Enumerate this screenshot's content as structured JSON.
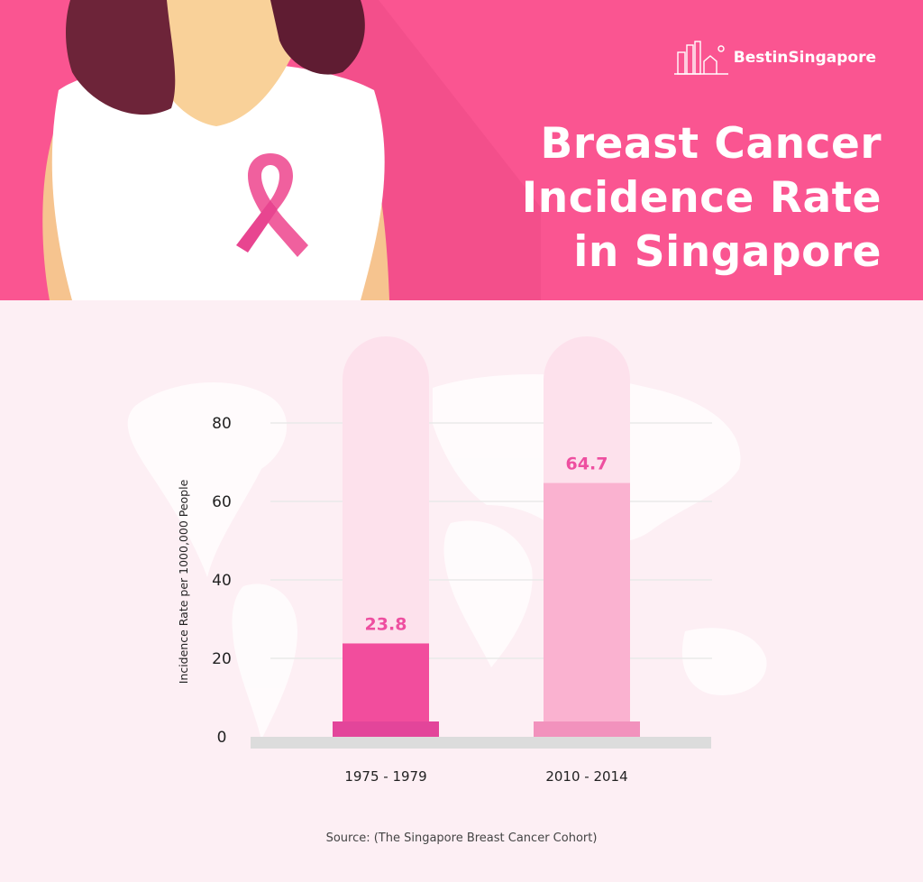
{
  "brand": {
    "name": "BestinSingapore"
  },
  "header": {
    "title_lines": [
      "Breast Cancer",
      "Incidence Rate",
      "in Singapore"
    ]
  },
  "colors": {
    "header_bg": "#fa5591",
    "page_bg": "#fdeff4",
    "bar_1": "#f24d9d",
    "bar_1_base": "#e3459a",
    "bar_2": "#fab2d0",
    "bar_2_base": "#f292bd",
    "tube_bg": "#fde1ec",
    "value_label": "#ee4fa0"
  },
  "chart_data": {
    "type": "bar",
    "title": "Breast Cancer Incidence Rate in Singapore",
    "ylabel": "Incidence Rate per 1000,000 People",
    "xlabel": "",
    "categories": [
      "1975 - 1979",
      "2010 - 2014"
    ],
    "values": [
      23.8,
      64.7
    ],
    "value_labels": [
      "23.8",
      "64.7"
    ],
    "yticks": [
      0,
      20,
      40,
      60,
      80
    ],
    "ylim": [
      0,
      80
    ],
    "grid": true,
    "legend": "none"
  },
  "source": "Source: (The Singapore Breast Cancer Cohort)"
}
